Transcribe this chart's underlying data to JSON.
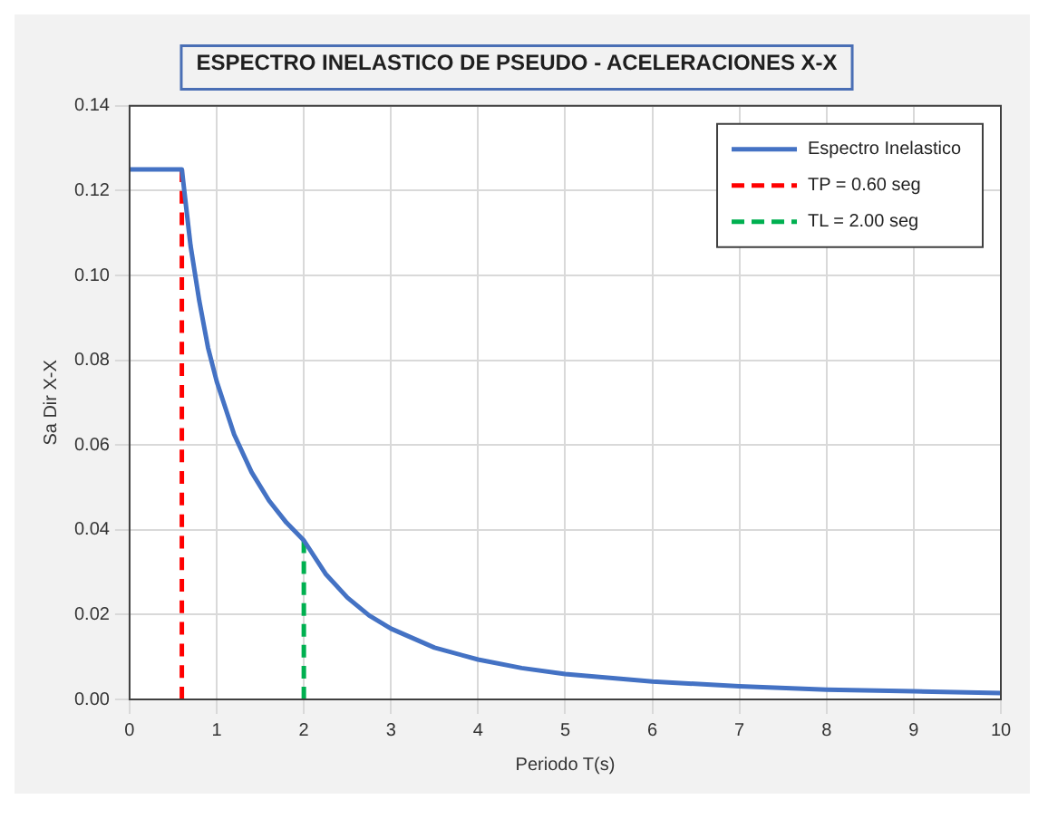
{
  "chart_data": {
    "type": "line",
    "title": "ESPECTRO INELASTICO DE PSEUDO - ACELERACIONES X-X",
    "xlabel": "Periodo T(s)",
    "ylabel": "Sa Dir X-X",
    "xlim": [
      0,
      10
    ],
    "xticks": [
      0,
      1,
      2,
      3,
      4,
      5,
      6,
      7,
      8,
      9,
      10
    ],
    "ylim": [
      0,
      0.14
    ],
    "yticks": [
      {
        "value": 0,
        "label": "0.00"
      },
      {
        "value": 0.02,
        "label": "0.02"
      },
      {
        "value": 0.04,
        "label": "0.04"
      },
      {
        "value": 0.06,
        "label": "0.06"
      },
      {
        "value": 0.08,
        "label": "0.08"
      },
      {
        "value": 0.1,
        "label": "0.10"
      },
      {
        "value": 0.12,
        "label": "0.12"
      },
      {
        "value": 0.14,
        "label": "0.14"
      }
    ],
    "grid": true,
    "legend": "top right",
    "marker": "none",
    "series": [
      {
        "name": "Espectro Inelastico",
        "color": "#4472c4",
        "line_style": "solid",
        "x": [
          0,
          0.6,
          0.7,
          0.8,
          0.9,
          1,
          1.2,
          1.4,
          1.6,
          1.8,
          2,
          2.25,
          2.5,
          2.75,
          3,
          3.5,
          4,
          4.5,
          5,
          6,
          7,
          8,
          9,
          10
        ],
        "values": [
          0.125,
          0.125,
          0.107,
          0.094,
          0.083,
          0.075,
          0.0625,
          0.0536,
          0.0469,
          0.0417,
          0.0375,
          0.0296,
          0.024,
          0.0198,
          0.0167,
          0.0122,
          0.0094,
          0.0074,
          0.006,
          0.0042,
          0.0031,
          0.0023,
          0.0019,
          0.0015
        ]
      },
      {
        "name": "TP = 0.60 seg",
        "color": "#ff0000",
        "line_style": "dashed",
        "x": [
          0.6,
          0.6
        ],
        "values": [
          0,
          0.125
        ]
      },
      {
        "name": "TL = 2.00 seg",
        "color": "#00b050",
        "line_style": "dashed",
        "x": [
          2,
          2
        ],
        "values": [
          0,
          0.0375
        ]
      }
    ]
  }
}
